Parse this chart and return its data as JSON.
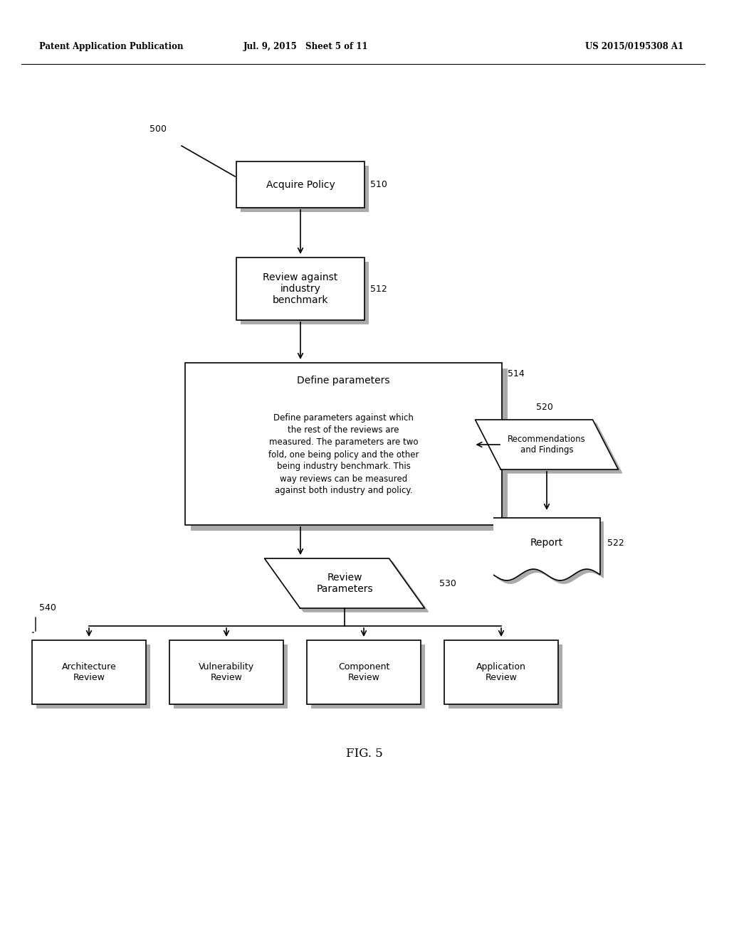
{
  "header_left": "Patent Application Publication",
  "header_mid": "Jul. 9, 2015   Sheet 5 of 11",
  "header_right": "US 2015/0195308 A1",
  "fig_label": "FIG. 5",
  "label_500": "500",
  "label_510": "510",
  "label_512": "512",
  "label_514": "514",
  "label_520": "520",
  "label_522": "522",
  "label_530": "530",
  "label_540": "540",
  "box510_text": "Acquire Policy",
  "box512_text": "Review against\nindustry\nbenchmark",
  "box514_title": "Define parameters",
  "box514_body": "Define parameters against which\nthe rest of the reviews are\nmeasured. The parameters are two\nfold, one being policy and the other\nbeing industry benchmark. This\nway reviews can be measured\nagainst both industry and policy.",
  "box520_text": "Recommendations\nand Findings",
  "box522_text": "Report",
  "box530_text": "Review\nParameters",
  "box540_labels": [
    "Architecture\nReview",
    "Vulnerability\nReview",
    "Component\nReview",
    "Application\nReview"
  ],
  "bg_color": "#ffffff",
  "box_edge_color": "#000000",
  "text_color": "#000000",
  "arrow_color": "#000000"
}
